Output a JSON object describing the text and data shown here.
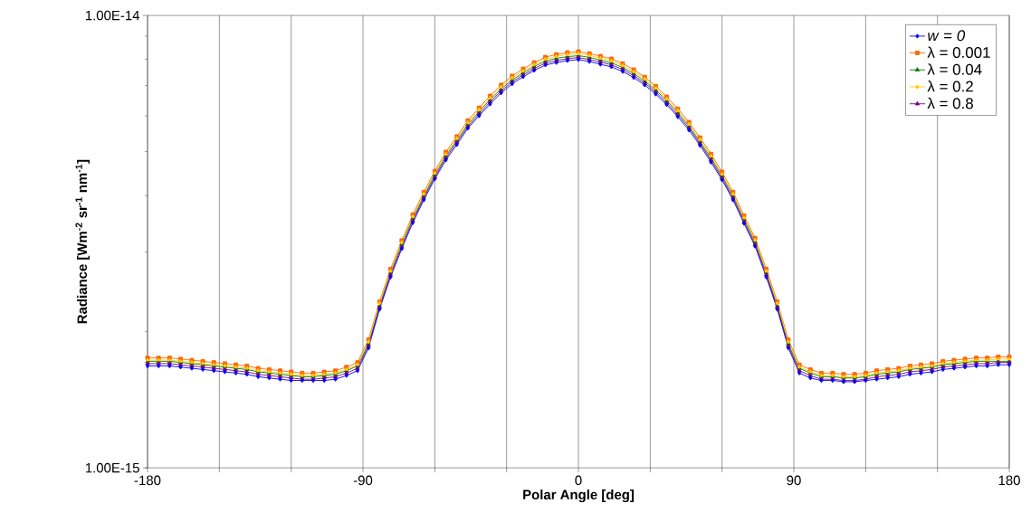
{
  "chart_data": {
    "type": "line",
    "xlabel": "Polar Angle [deg]",
    "ylabel": "Radiance [Wm$^{-2}$ sr$^{-1}$ nm$^{-1}$]",
    "x": [
      -180,
      -175.4,
      -170.8,
      -166.2,
      -161.5,
      -156.9,
      -152.3,
      -147.7,
      -143.1,
      -138.5,
      -133.8,
      -129.2,
      -124.6,
      -120,
      -115.4,
      -110.8,
      -106.2,
      -101.5,
      -96.9,
      -92.3,
      -87.7,
      -83.1,
      -78.5,
      -73.8,
      -69.2,
      -64.6,
      -60,
      -55.4,
      -50.8,
      -46.2,
      -41.5,
      -36.9,
      -32.3,
      -27.7,
      -23.1,
      -18.5,
      -13.8,
      -9.2,
      -4.6,
      0,
      4.6,
      9.2,
      13.8,
      18.5,
      23.1,
      27.7,
      32.3,
      36.9,
      41.5,
      46.2,
      50.8,
      55.4,
      60,
      64.6,
      69.2,
      73.8,
      78.5,
      83.1,
      87.7,
      92.3,
      96.9,
      101.5,
      106.2,
      110.8,
      115.4,
      120,
      124.6,
      129.2,
      133.8,
      138.5,
      143.1,
      147.7,
      152.3,
      156.9,
      161.5,
      166.2,
      170.8,
      175.4,
      180
    ],
    "series": [
      {
        "name": "*w* = *0*",
        "color": "#0000ff",
        "marker": "diamond",
        "values": [
          1.68e-15,
          1.68e-15,
          1.68e-15,
          1.67e-15,
          1.66e-15,
          1.65e-15,
          1.64e-15,
          1.63e-15,
          1.62e-15,
          1.61e-15,
          1.59e-15,
          1.58e-15,
          1.57e-15,
          1.56e-15,
          1.56e-15,
          1.56e-15,
          1.56e-15,
          1.57e-15,
          1.6e-15,
          1.64e-15,
          1.84e-15,
          2.24e-15,
          2.64e-15,
          3.05e-15,
          3.48e-15,
          3.91e-15,
          4.35e-15,
          4.79e-15,
          5.18e-15,
          5.63e-15,
          6e-15,
          6.37e-15,
          6.74e-15,
          7.06e-15,
          7.32e-15,
          7.56e-15,
          7.77e-15,
          7.87e-15,
          7.95e-15,
          7.99e-15,
          7.91e-15,
          7.8e-15,
          7.7e-15,
          7.52e-15,
          7.29e-15,
          7.02e-15,
          6.7e-15,
          6.35e-15,
          5.97e-15,
          5.58e-15,
          5.16e-15,
          4.74e-15,
          4.33e-15,
          3.91e-15,
          3.47e-15,
          3.09e-15,
          2.64e-15,
          2.24e-15,
          1.84e-15,
          1.62e-15,
          1.58e-15,
          1.56e-15,
          1.56e-15,
          1.55e-15,
          1.55e-15,
          1.56e-15,
          1.57e-15,
          1.58e-15,
          1.59e-15,
          1.61e-15,
          1.62e-15,
          1.63e-15,
          1.65e-15,
          1.66e-15,
          1.67e-15,
          1.68e-15,
          1.68e-15,
          1.69e-15,
          1.69e-15
        ]
      },
      {
        "name": "λ = 0.001",
        "color": "#ff6600",
        "marker": "square",
        "values": [
          1.75e-15,
          1.75e-15,
          1.75e-15,
          1.74e-15,
          1.73e-15,
          1.72e-15,
          1.71e-15,
          1.7e-15,
          1.69e-15,
          1.68e-15,
          1.66e-15,
          1.65e-15,
          1.64e-15,
          1.63e-15,
          1.62e-15,
          1.62e-15,
          1.63e-15,
          1.64e-15,
          1.67e-15,
          1.71e-15,
          1.92e-15,
          2.33e-15,
          2.75e-15,
          3.18e-15,
          3.63e-15,
          4.07e-15,
          4.53e-15,
          4.99e-15,
          5.4e-15,
          5.86e-15,
          6.25e-15,
          6.64e-15,
          7.02e-15,
          7.35e-15,
          7.62e-15,
          7.87e-15,
          8.09e-15,
          8.2e-15,
          8.28e-15,
          8.32e-15,
          8.24e-15,
          8.13e-15,
          8.02e-15,
          7.83e-15,
          7.59e-15,
          7.31e-15,
          6.98e-15,
          6.61e-15,
          6.22e-15,
          5.81e-15,
          5.37e-15,
          4.94e-15,
          4.51e-15,
          4.07e-15,
          3.61e-15,
          3.22e-15,
          2.75e-15,
          2.33e-15,
          1.92e-15,
          1.69e-15,
          1.65e-15,
          1.62e-15,
          1.62e-15,
          1.61e-15,
          1.61e-15,
          1.62e-15,
          1.64e-15,
          1.65e-15,
          1.66e-15,
          1.68e-15,
          1.69e-15,
          1.7e-15,
          1.72e-15,
          1.73e-15,
          1.74e-15,
          1.75e-15,
          1.75e-15,
          1.76e-15,
          1.76e-15
        ]
      },
      {
        "name": "λ = 0.04",
        "color": "#008000",
        "marker": "triangle",
        "values": [
          1.72e-15,
          1.72e-15,
          1.72e-15,
          1.71e-15,
          1.7e-15,
          1.69e-15,
          1.68e-15,
          1.67e-15,
          1.66e-15,
          1.65e-15,
          1.63e-15,
          1.62e-15,
          1.61e-15,
          1.6e-15,
          1.59e-15,
          1.59e-15,
          1.6e-15,
          1.61e-15,
          1.64e-15,
          1.68e-15,
          1.88e-15,
          2.28e-15,
          2.7e-15,
          3.12e-15,
          3.56e-15,
          3.99e-15,
          4.44e-15,
          4.89e-15,
          5.29e-15,
          5.74e-15,
          6.13e-15,
          6.51e-15,
          6.88e-15,
          7.2e-15,
          7.47e-15,
          7.71e-15,
          7.93e-15,
          8.04e-15,
          8.11e-15,
          8.15e-15,
          8.08e-15,
          7.97e-15,
          7.86e-15,
          7.67e-15,
          7.44e-15,
          7.16e-15,
          6.84e-15,
          6.48e-15,
          6.1e-15,
          5.69e-15,
          5.26e-15,
          4.84e-15,
          4.42e-15,
          3.99e-15,
          3.54e-15,
          3.16e-15,
          2.7e-15,
          2.28e-15,
          1.88e-15,
          1.66e-15,
          1.62e-15,
          1.59e-15,
          1.59e-15,
          1.58e-15,
          1.58e-15,
          1.59e-15,
          1.61e-15,
          1.62e-15,
          1.63e-15,
          1.65e-15,
          1.66e-15,
          1.67e-15,
          1.69e-15,
          1.7e-15,
          1.71e-15,
          1.72e-15,
          1.72e-15,
          1.72e-15,
          1.72e-15
        ]
      },
      {
        "name": "λ = 0.2",
        "color": "#ffcc00",
        "marker": "diamond",
        "values": [
          1.73e-15,
          1.73e-15,
          1.73e-15,
          1.72e-15,
          1.71e-15,
          1.7e-15,
          1.69e-15,
          1.68e-15,
          1.67e-15,
          1.66e-15,
          1.64e-15,
          1.63e-15,
          1.62e-15,
          1.61e-15,
          1.6e-15,
          1.6e-15,
          1.61e-15,
          1.62e-15,
          1.65e-15,
          1.69e-15,
          1.9e-15,
          2.31e-15,
          2.72e-15,
          3.15e-15,
          3.59e-15,
          4.03e-15,
          4.48e-15,
          4.94e-15,
          5.35e-15,
          5.8e-15,
          6.19e-15,
          6.57e-15,
          6.95e-15,
          7.28e-15,
          7.54e-15,
          7.79e-15,
          8.01e-15,
          8.12e-15,
          8.2e-15,
          8.24e-15,
          8.16e-15,
          8.05e-15,
          7.94e-15,
          7.75e-15,
          7.51e-15,
          7.24e-15,
          6.91e-15,
          6.54e-15,
          6.16e-15,
          5.75e-15,
          5.32e-15,
          4.89e-15,
          4.46e-15,
          4.03e-15,
          3.57e-15,
          3.19e-15,
          2.72e-15,
          2.31e-15,
          1.9e-15,
          1.67e-15,
          1.63e-15,
          1.6e-15,
          1.6e-15,
          1.59e-15,
          1.59e-15,
          1.6e-15,
          1.62e-15,
          1.63e-15,
          1.64e-15,
          1.66e-15,
          1.67e-15,
          1.68e-15,
          1.7e-15,
          1.71e-15,
          1.72e-15,
          1.73e-15,
          1.73e-15,
          1.74e-15,
          1.74e-15
        ]
      },
      {
        "name": "λ = 0.8",
        "color": "#800080",
        "marker": "triangle",
        "values": [
          1.7e-15,
          1.7e-15,
          1.7e-15,
          1.69e-15,
          1.68e-15,
          1.67e-15,
          1.66e-15,
          1.65e-15,
          1.64e-15,
          1.63e-15,
          1.61e-15,
          1.6e-15,
          1.59e-15,
          1.58e-15,
          1.57e-15,
          1.57e-15,
          1.58e-15,
          1.59e-15,
          1.62e-15,
          1.66e-15,
          1.86e-15,
          2.26e-15,
          2.67e-15,
          3.08e-15,
          3.52e-15,
          3.95e-15,
          4.39e-15,
          4.84e-15,
          5.24e-15,
          5.68e-15,
          6.06e-15,
          6.44e-15,
          6.81e-15,
          7.13e-15,
          7.39e-15,
          7.63e-15,
          7.85e-15,
          7.95e-15,
          8.03e-15,
          8.07e-15,
          7.99e-15,
          7.89e-15,
          7.78e-15,
          7.6e-15,
          7.36e-15,
          7.09e-15,
          6.77e-15,
          6.41e-15,
          6.03e-15,
          5.64e-15,
          5.21e-15,
          4.79e-15,
          4.37e-15,
          3.95e-15,
          3.5e-15,
          3.12e-15,
          2.67e-15,
          2.26e-15,
          1.86e-15,
          1.64e-15,
          1.6e-15,
          1.57e-15,
          1.57e-15,
          1.56e-15,
          1.56e-15,
          1.57e-15,
          1.59e-15,
          1.6e-15,
          1.61e-15,
          1.63e-15,
          1.64e-15,
          1.65e-15,
          1.67e-15,
          1.68e-15,
          1.69e-15,
          1.7e-15,
          1.7e-15,
          1.71e-15,
          1.71e-15
        ]
      }
    ],
    "xlim": [
      -180,
      180
    ],
    "xticks": [
      -180,
      {
        "value": -150,
        "label": null
      },
      {
        "value": -120,
        "label": null
      },
      -90,
      {
        "value": -60,
        "label": null
      },
      {
        "value": -30,
        "label": null
      },
      0,
      {
        "value": 30,
        "label": null
      },
      {
        "value": 60,
        "label": null
      },
      90,
      {
        "value": 120,
        "label": null
      },
      {
        "value": 150,
        "label": null
      },
      180
    ],
    "ylim": [
      1e-15,
      1e-14
    ],
    "yticks": [
      {
        "value": 1e-15,
        "label": "1.00E-15"
      },
      {
        "value": 1e-14,
        "label": "1.00E-14"
      }
    ],
    "log": "y",
    "grid": "x",
    "legend": "top right",
    "line_style": "solid"
  }
}
